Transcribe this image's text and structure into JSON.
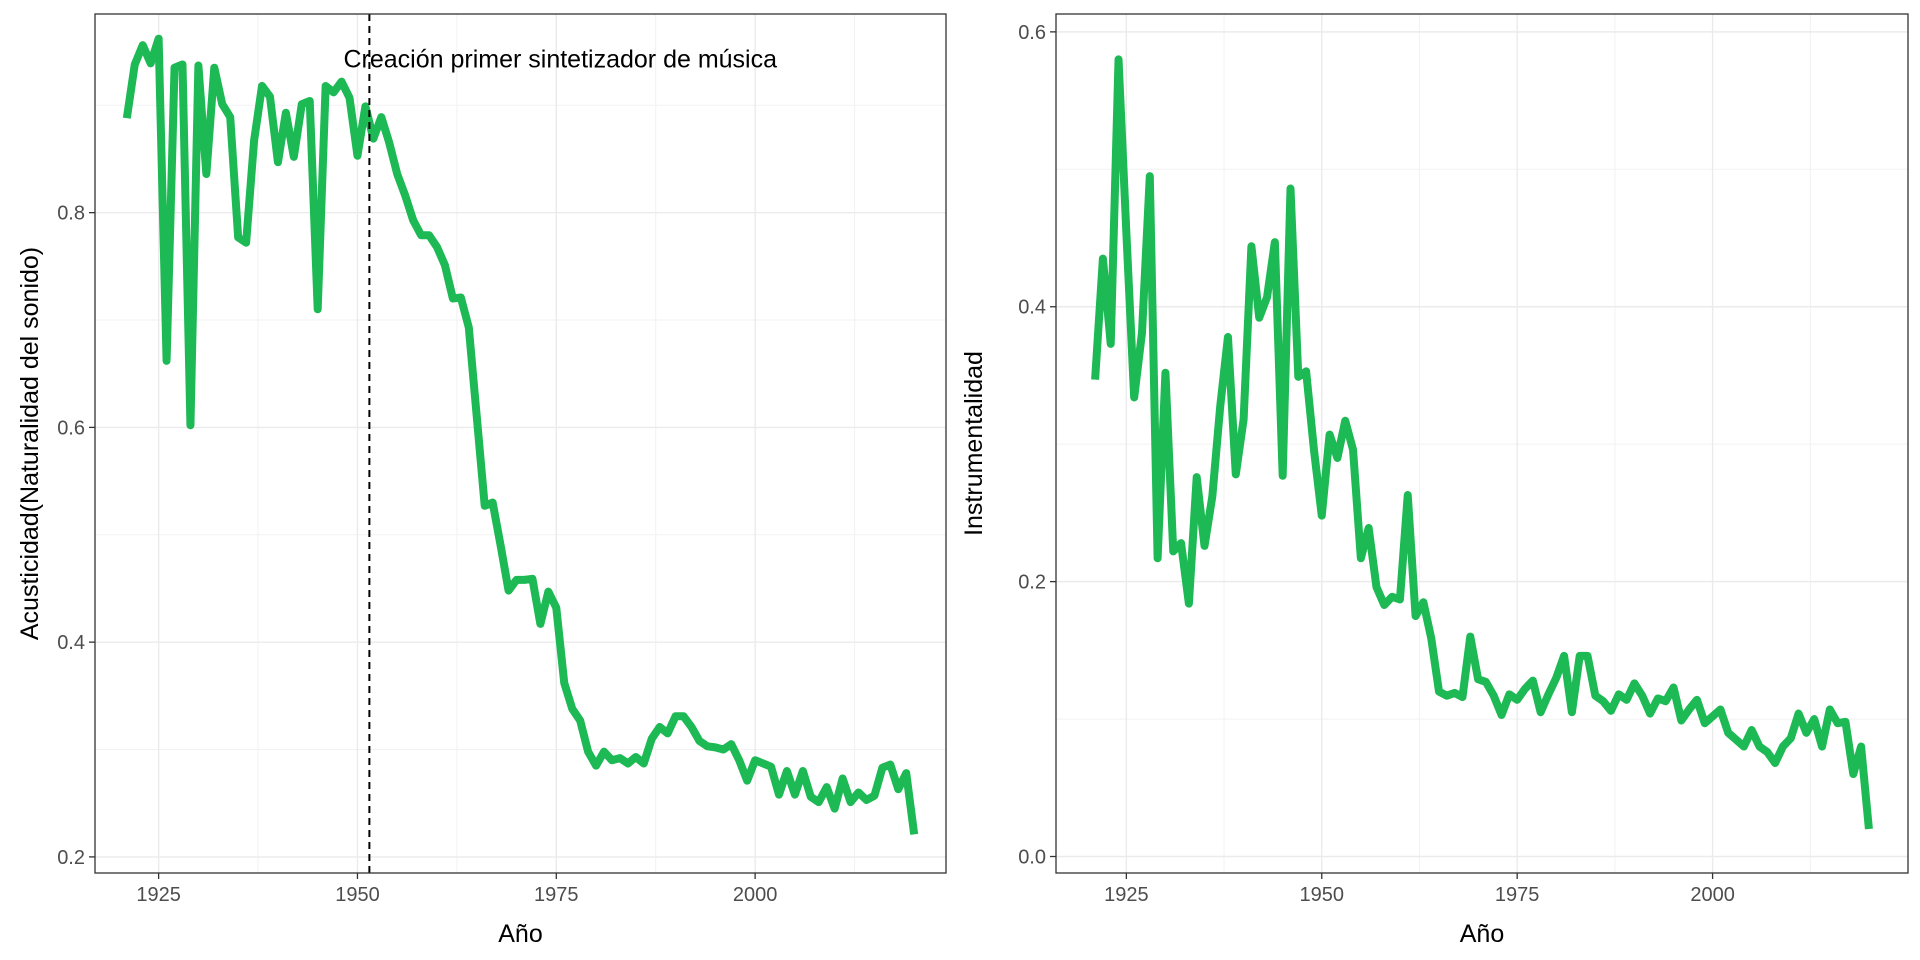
{
  "colors": {
    "line": "#1DB954"
  },
  "chart_data": [
    {
      "type": "line",
      "xlabel": "Año",
      "ylabel": "Acusticidad(Naturalidad del sonido)",
      "xlim": [
        1917,
        2024
      ],
      "ylim": [
        0.185,
        0.985
      ],
      "xticks": [
        1925,
        1950,
        1975,
        2000
      ],
      "yticks": [
        0.2,
        0.4,
        0.6,
        0.8
      ],
      "ytick_labels": [
        "0.2",
        "0.4",
        "0.6",
        "0.8"
      ],
      "grid": true,
      "vline": {
        "x": 1951.5,
        "style": "dashed"
      },
      "annotation": {
        "text": "Creación primer sintetizador de música",
        "x": 1975.5,
        "y": 0.935
      },
      "series": [
        {
          "x": [
            1921,
            1922,
            1923,
            1924,
            1925,
            1926,
            1927,
            1928,
            1929,
            1930,
            1931,
            1932,
            1933,
            1934,
            1935,
            1936,
            1937,
            1938,
            1939,
            1940,
            1941,
            1942,
            1943,
            1944,
            1945,
            1946,
            1947,
            1948,
            1949,
            1950,
            1951,
            1952,
            1953,
            1954,
            1955,
            1956,
            1957,
            1958,
            1959,
            1960,
            1961,
            1962,
            1963,
            1964,
            1965,
            1966,
            1967,
            1968,
            1969,
            1970,
            1971,
            1972,
            1973,
            1974,
            1975,
            1976,
            1977,
            1978,
            1979,
            1980,
            1981,
            1982,
            1983,
            1984,
            1985,
            1986,
            1987,
            1988,
            1989,
            1990,
            1991,
            1992,
            1993,
            1994,
            1995,
            1996,
            1997,
            1998,
            1999,
            2000,
            2001,
            2002,
            2003,
            2004,
            2005,
            2006,
            2007,
            2008,
            2009,
            2010,
            2011,
            2012,
            2013,
            2014,
            2015,
            2016,
            2017,
            2018,
            2019,
            2020
          ],
          "y": [
            0.888,
            0.938,
            0.956,
            0.939,
            0.962,
            0.662,
            0.935,
            0.938,
            0.602,
            0.937,
            0.836,
            0.935,
            0.901,
            0.889,
            0.777,
            0.772,
            0.867,
            0.918,
            0.908,
            0.847,
            0.893,
            0.852,
            0.901,
            0.904,
            0.71,
            0.918,
            0.912,
            0.922,
            0.907,
            0.853,
            0.899,
            0.869,
            0.889,
            0.865,
            0.836,
            0.816,
            0.793,
            0.779,
            0.779,
            0.768,
            0.751,
            0.72,
            0.721,
            0.693,
            0.61,
            0.527,
            0.53,
            0.49,
            0.448,
            0.458,
            0.458,
            0.459,
            0.417,
            0.447,
            0.432,
            0.362,
            0.338,
            0.327,
            0.298,
            0.285,
            0.298,
            0.29,
            0.292,
            0.287,
            0.293,
            0.287,
            0.31,
            0.321,
            0.315,
            0.331,
            0.331,
            0.321,
            0.308,
            0.303,
            0.302,
            0.3,
            0.305,
            0.29,
            0.271,
            0.29,
            0.287,
            0.284,
            0.258,
            0.28,
            0.258,
            0.28,
            0.256,
            0.251,
            0.265,
            0.245,
            0.273,
            0.251,
            0.26,
            0.253,
            0.257,
            0.283,
            0.286,
            0.263,
            0.278,
            0.221
          ]
        }
      ]
    },
    {
      "type": "line",
      "xlabel": "Año",
      "ylabel": "Instrumentalidad",
      "xlim": [
        1916,
        2025
      ],
      "ylim": [
        -0.012,
        0.613
      ],
      "xticks": [
        1925,
        1950,
        1975,
        2000
      ],
      "yticks": [
        0.0,
        0.2,
        0.4,
        0.6
      ],
      "ytick_labels": [
        "0.0",
        "0.2",
        "0.4",
        "0.6"
      ],
      "grid": true,
      "series": [
        {
          "x": [
            1921,
            1922,
            1923,
            1924,
            1925,
            1926,
            1927,
            1928,
            1929,
            1930,
            1931,
            1932,
            1933,
            1934,
            1935,
            1936,
            1937,
            1938,
            1939,
            1940,
            1941,
            1942,
            1943,
            1944,
            1945,
            1946,
            1947,
            1948,
            1949,
            1950,
            1951,
            1952,
            1953,
            1954,
            1955,
            1956,
            1957,
            1958,
            1959,
            1960,
            1961,
            1962,
            1963,
            1964,
            1965,
            1966,
            1967,
            1968,
            1969,
            1970,
            1971,
            1972,
            1973,
            1974,
            1975,
            1976,
            1977,
            1978,
            1979,
            1980,
            1981,
            1982,
            1983,
            1984,
            1985,
            1986,
            1987,
            1988,
            1989,
            1990,
            1991,
            1992,
            1993,
            1994,
            1995,
            1996,
            1997,
            1998,
            1999,
            2000,
            2001,
            2002,
            2003,
            2004,
            2005,
            2006,
            2007,
            2008,
            2009,
            2010,
            2011,
            2012,
            2013,
            2014,
            2015,
            2016,
            2017,
            2018,
            2019,
            2020
          ],
          "y": [
            0.347,
            0.435,
            0.373,
            0.58,
            0.454,
            0.334,
            0.381,
            0.495,
            0.217,
            0.352,
            0.222,
            0.228,
            0.184,
            0.276,
            0.226,
            0.262,
            0.327,
            0.378,
            0.278,
            0.318,
            0.444,
            0.392,
            0.407,
            0.447,
            0.277,
            0.486,
            0.349,
            0.353,
            0.296,
            0.248,
            0.307,
            0.29,
            0.317,
            0.296,
            0.217,
            0.239,
            0.196,
            0.183,
            0.189,
            0.187,
            0.263,
            0.175,
            0.185,
            0.159,
            0.12,
            0.117,
            0.119,
            0.116,
            0.16,
            0.129,
            0.127,
            0.117,
            0.103,
            0.118,
            0.114,
            0.122,
            0.128,
            0.105,
            0.118,
            0.13,
            0.146,
            0.105,
            0.146,
            0.146,
            0.117,
            0.113,
            0.106,
            0.118,
            0.114,
            0.126,
            0.117,
            0.104,
            0.115,
            0.113,
            0.123,
            0.099,
            0.107,
            0.114,
            0.097,
            0.102,
            0.107,
            0.09,
            0.085,
            0.08,
            0.092,
            0.08,
            0.076,
            0.068,
            0.08,
            0.086,
            0.104,
            0.09,
            0.1,
            0.08,
            0.107,
            0.097,
            0.098,
            0.06,
            0.08,
            0.02
          ]
        }
      ]
    }
  ]
}
